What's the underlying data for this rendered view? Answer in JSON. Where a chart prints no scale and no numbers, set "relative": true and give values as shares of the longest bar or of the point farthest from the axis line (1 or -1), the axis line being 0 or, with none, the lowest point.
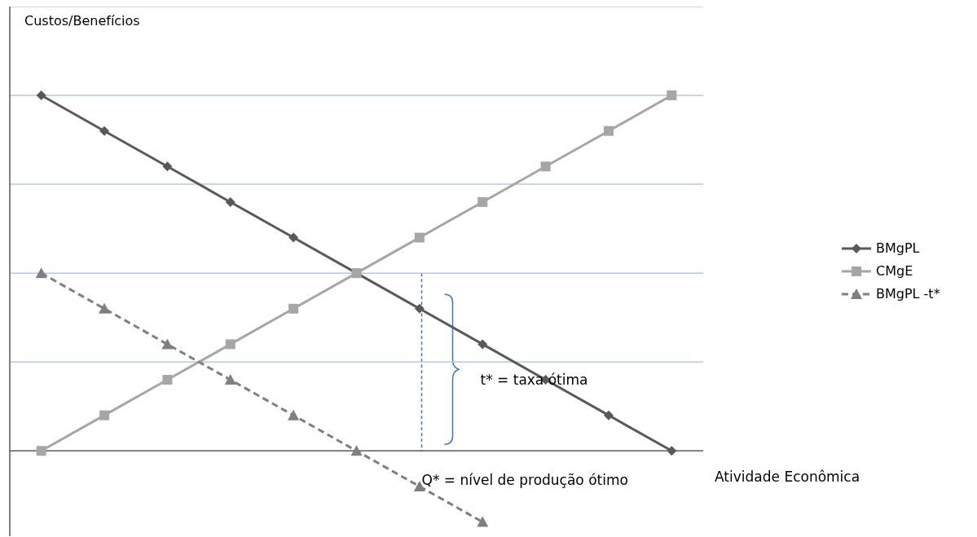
{
  "chart_data": {
    "type": "line",
    "relative": true,
    "xlabel": "Atividade Econômica",
    "categories": [
      null,
      null,
      null,
      null,
      null,
      null,
      null,
      null,
      null,
      null,
      null
    ],
    "legend": "right",
    "ref_lines": [
      {
        "axis": "y",
        "value": 0.25,
        "color": "#b4c7e7"
      },
      {
        "axis": "y",
        "value": 0.5,
        "color": "#b4c7e7"
      },
      {
        "axis": "y",
        "value": 0.75,
        "color": "#b4c7e7"
      },
      {
        "axis": "y",
        "value": 1,
        "color": "#b4c7e7"
      },
      {
        "axis": "y",
        "value": 1.25,
        "color": "#b4c7e7"
      }
    ],
    "series": [
      {
        "name": "BMgPL",
        "color": "#595959",
        "marker": "diamond",
        "line_style": "solid",
        "values": [
          1,
          0.9,
          0.8,
          0.7,
          0.6,
          0.5,
          0.4,
          0.3,
          0.2,
          0.1,
          0
        ]
      },
      {
        "name": "CMgE",
        "color": "#a6a6a6",
        "marker": "square",
        "line_style": "solid",
        "values": [
          0,
          0.1,
          0.2,
          0.3,
          0.4,
          0.5,
          0.6,
          0.7,
          0.8,
          0.9,
          1
        ]
      },
      {
        "name": "BMgPL -t*",
        "color": "#7f7f7f",
        "marker": "triangle",
        "line_style": "dashed",
        "values": [
          0.5,
          0.4,
          0.3,
          0.2,
          0.1,
          0,
          -0.1,
          -0.2,
          null,
          null,
          null
        ]
      }
    ],
    "annotations": [
      "Custos/Benefícios",
      {
        "text": "t* = taxa  ótima"
      },
      {
        "text": "Q* = nível de produção ótimo"
      }
    ]
  }
}
